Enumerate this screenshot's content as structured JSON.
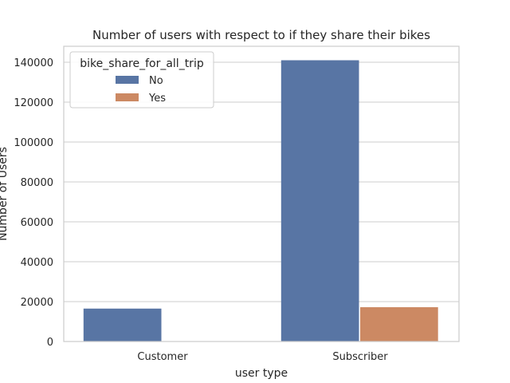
{
  "chart_data": {
    "type": "bar",
    "title": "Number of users with respect to if they share their bikes",
    "xlabel": "user type",
    "ylabel": "Number of Users",
    "categories": [
      "Customer",
      "Subscriber"
    ],
    "series": [
      {
        "name": "No",
        "values": [
          16500,
          141000
        ],
        "color": "#5875a4"
      },
      {
        "name": "Yes",
        "values": [
          0,
          17200
        ],
        "color": "#cc8963"
      }
    ],
    "ylim": [
      0,
      148000
    ],
    "yticks": [
      0,
      20000,
      40000,
      60000,
      80000,
      100000,
      120000,
      140000
    ],
    "grid": "horizontal",
    "legend": {
      "title": "bike_share_for_all_trip",
      "placement": "top-left"
    }
  }
}
